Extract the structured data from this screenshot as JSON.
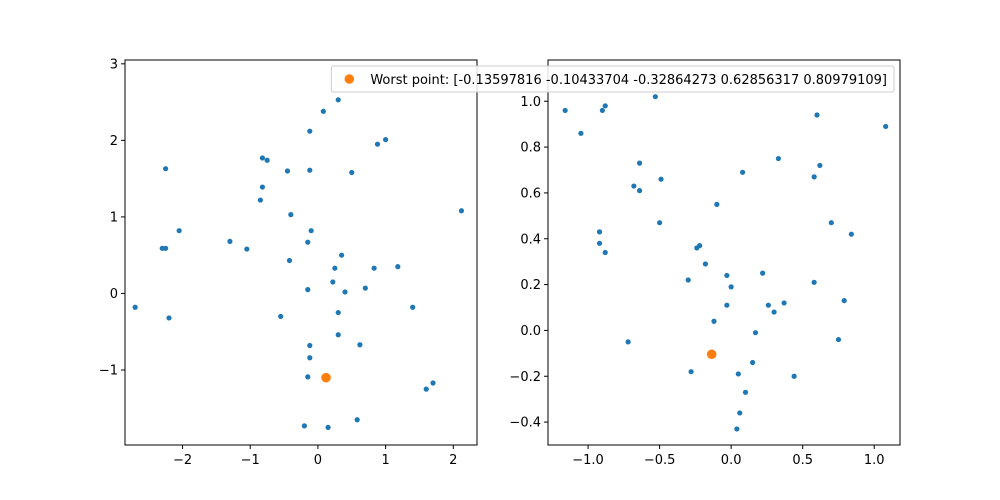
{
  "chart_data": [
    {
      "type": "scatter",
      "xlim": [
        -2.85,
        2.35
      ],
      "ylim": [
        -1.98,
        3.05
      ],
      "xticks": [
        -2,
        -1,
        0,
        1,
        2
      ],
      "yticks": [
        -1,
        0,
        1,
        2,
        3
      ],
      "tick_labels": {
        "x": [
          "−2",
          "−1",
          "0",
          "1",
          "2"
        ],
        "y": [
          "−1",
          "0",
          "1",
          "2",
          "3"
        ]
      },
      "grid": false,
      "series": [
        {
          "color": "#1f77b4",
          "points": [
            [
              -2.7,
              -0.18
            ],
            [
              -2.3,
              0.59
            ],
            [
              -2.25,
              0.59
            ],
            [
              -2.2,
              -0.32
            ],
            [
              -2.05,
              0.82
            ],
            [
              -2.25,
              1.63
            ],
            [
              -1.3,
              0.68
            ],
            [
              -1.05,
              0.58
            ],
            [
              -0.85,
              1.22
            ],
            [
              -0.82,
              1.39
            ],
            [
              -0.82,
              1.77
            ],
            [
              -0.75,
              1.74
            ],
            [
              -0.45,
              1.6
            ],
            [
              -0.4,
              1.03
            ],
            [
              -0.42,
              0.43
            ],
            [
              -0.55,
              -0.3
            ],
            [
              -0.12,
              2.12
            ],
            [
              -0.12,
              1.61
            ],
            [
              0.08,
              2.38
            ],
            [
              0.3,
              2.53
            ],
            [
              0.5,
              1.58
            ],
            [
              0.88,
              1.95
            ],
            [
              1.0,
              2.01
            ],
            [
              2.12,
              1.08
            ],
            [
              -0.1,
              0.82
            ],
            [
              -0.15,
              0.67
            ],
            [
              -0.15,
              0.05
            ],
            [
              0.35,
              0.5
            ],
            [
              0.25,
              0.33
            ],
            [
              0.22,
              0.15
            ],
            [
              0.4,
              0.02
            ],
            [
              0.7,
              0.07
            ],
            [
              0.83,
              0.33
            ],
            [
              1.18,
              0.35
            ],
            [
              1.4,
              -0.18
            ],
            [
              0.3,
              -0.25
            ],
            [
              0.3,
              -0.54
            ],
            [
              0.62,
              -0.67
            ],
            [
              -0.12,
              -0.68
            ],
            [
              -0.12,
              -0.84
            ],
            [
              -0.15,
              -1.09
            ],
            [
              1.7,
              -1.17
            ],
            [
              1.6,
              -1.25
            ],
            [
              0.58,
              -1.65
            ],
            [
              -0.2,
              -1.73
            ],
            [
              0.15,
              -1.75
            ]
          ]
        },
        {
          "color": "#ff7f0e",
          "points": [
            [
              0.12,
              -1.1
            ]
          ]
        }
      ]
    },
    {
      "type": "scatter",
      "xlim": [
        -1.28,
        1.18
      ],
      "ylim": [
        -0.5,
        1.18
      ],
      "xticks": [
        -1.0,
        -0.5,
        0.0,
        0.5,
        1.0
      ],
      "yticks": [
        -0.4,
        -0.2,
        0.0,
        0.2,
        0.4,
        0.6,
        0.8,
        1.0
      ],
      "tick_labels": {
        "x": [
          "−1.0",
          "−0.5",
          "0.0",
          "0.5",
          "1.0"
        ],
        "y": [
          "−0.4",
          "−0.2",
          "0.0",
          "0.2",
          "0.4",
          "0.6",
          "0.8",
          "1.0"
        ]
      },
      "grid": false,
      "legend": {
        "placement": "upper-right",
        "entry": "Worst point: [-0.13597816 -0.10433704 -0.32864273  0.62856317  0.80979109]",
        "color": "#ff7f0e"
      },
      "series": [
        {
          "color": "#1f77b4",
          "points": [
            [
              -1.16,
              0.96
            ],
            [
              -1.05,
              0.86
            ],
            [
              -0.9,
              0.96
            ],
            [
              -0.88,
              0.98
            ],
            [
              -0.53,
              1.02
            ],
            [
              -0.64,
              0.73
            ],
            [
              -0.68,
              0.63
            ],
            [
              -0.64,
              0.61
            ],
            [
              -0.49,
              0.66
            ],
            [
              -0.5,
              0.47
            ],
            [
              -0.92,
              0.43
            ],
            [
              -0.92,
              0.38
            ],
            [
              -0.88,
              0.34
            ],
            [
              -0.72,
              -0.05
            ],
            [
              -0.24,
              0.36
            ],
            [
              -0.22,
              0.37
            ],
            [
              -0.18,
              0.29
            ],
            [
              -0.3,
              0.22
            ],
            [
              -0.1,
              0.55
            ],
            [
              -0.03,
              0.24
            ],
            [
              0.0,
              0.19
            ],
            [
              -0.03,
              0.11
            ],
            [
              -0.12,
              0.04
            ],
            [
              0.08,
              0.69
            ],
            [
              0.33,
              0.75
            ],
            [
              0.22,
              0.25
            ],
            [
              0.26,
              0.11
            ],
            [
              0.3,
              0.08
            ],
            [
              0.37,
              0.12
            ],
            [
              0.17,
              -0.01
            ],
            [
              0.6,
              0.94
            ],
            [
              0.62,
              0.72
            ],
            [
              0.58,
              0.67
            ],
            [
              1.08,
              0.89
            ],
            [
              0.7,
              0.47
            ],
            [
              0.84,
              0.42
            ],
            [
              0.58,
              0.21
            ],
            [
              0.79,
              0.13
            ],
            [
              0.75,
              -0.04
            ],
            [
              0.44,
              -0.2
            ],
            [
              -0.28,
              -0.18
            ],
            [
              0.15,
              -0.14
            ],
            [
              0.05,
              -0.19
            ],
            [
              0.1,
              -0.27
            ],
            [
              0.06,
              -0.36
            ],
            [
              0.04,
              -0.43
            ]
          ]
        },
        {
          "color": "#ff7f0e",
          "points": [
            [
              -0.136,
              -0.104
            ]
          ]
        }
      ]
    }
  ]
}
